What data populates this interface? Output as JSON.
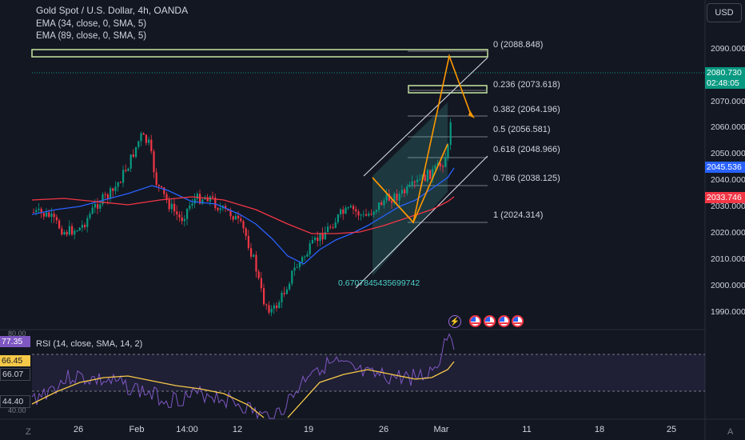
{
  "header": {
    "symbol_title": "Gold Spot / U.S. Dollar, 4h, OANDA",
    "indicator_1": "EMA (34, close, 0, SMA, 5)",
    "indicator_2": "EMA (89, close, 0, SMA, 5)",
    "currency_button": "USD"
  },
  "price_axis": {
    "labels": [
      "2090.000",
      "2080.000",
      "2070.000",
      "2060.000",
      "2050.000",
      "2040.000",
      "2030.000",
      "2020.000",
      "2010.000",
      "2000.000",
      "1990.000"
    ],
    "current_price": "2080.730",
    "countdown": "02:48:05",
    "ema34_tag": "2045.536",
    "ema89_tag": "2033.746",
    "colors": {
      "current": "#089981",
      "ema34": "#2962ff",
      "ema89": "#f23645"
    }
  },
  "fib": {
    "levels": [
      {
        "label": "0 (2088.848)"
      },
      {
        "label": "0.236 (2073.618)"
      },
      {
        "label": "0.382 (2064.196)"
      },
      {
        "label": "0.5 (2056.581)"
      },
      {
        "label": "0.618 (2048.966)"
      },
      {
        "label": "0.786 (2038.125)"
      },
      {
        "label": "1 (2024.314)"
      }
    ],
    "channel_label": "0.6707845435699742"
  },
  "rsi": {
    "title": "RSI (14, close, SMA, 14, 2)",
    "value_tag": "77.35",
    "upper_tag": "66.45",
    "sma_tag": "66.07",
    "lower_tag": "44.40",
    "scale_top": "80.00",
    "scale_bottom": "40.00"
  },
  "time_axis": {
    "labels": [
      "26",
      "Feb",
      "14:00",
      "12",
      "19",
      "26",
      "Mar",
      "11",
      "18",
      "25"
    ]
  },
  "corners": {
    "left": "Z",
    "right": "A"
  }
}
